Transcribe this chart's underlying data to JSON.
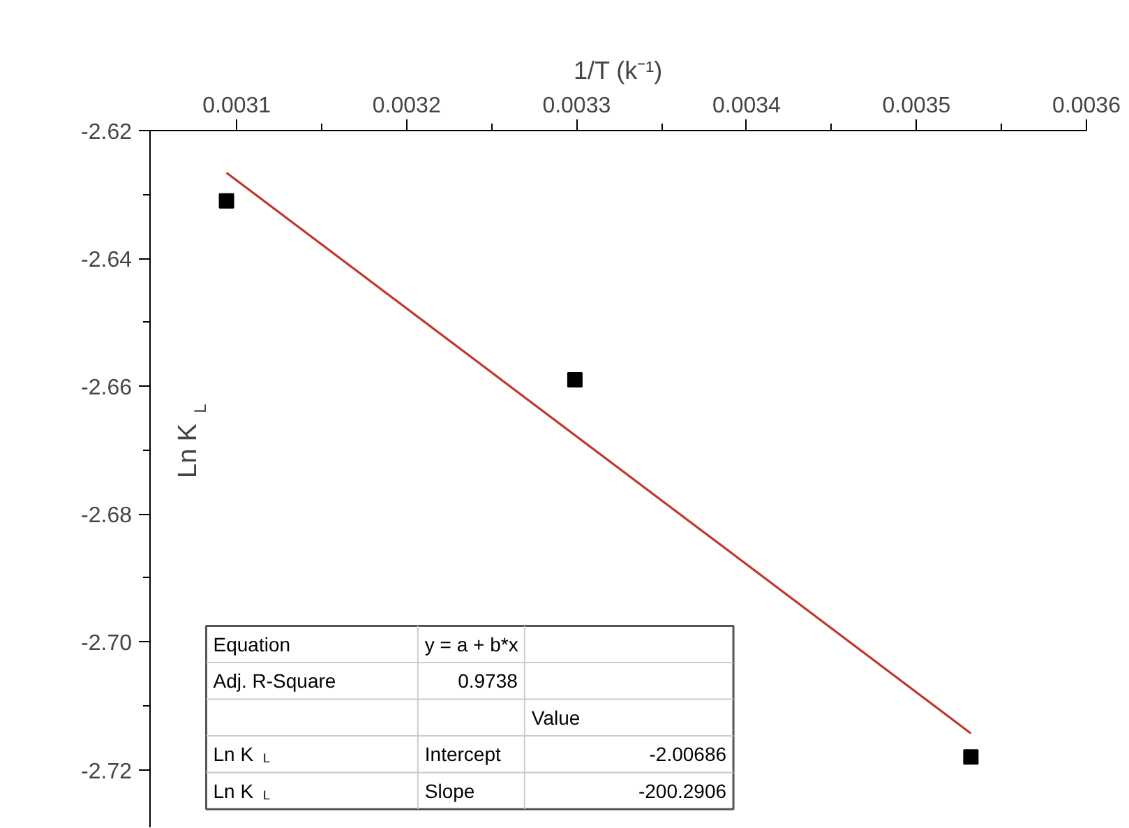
{
  "chart_data": {
    "type": "scatter",
    "xlabel": "1/T (k⁻¹)",
    "ylabel": "Ln K$_{L}$",
    "xlim": [
      0.003049,
      0.0036
    ],
    "ylim": [
      -2.729,
      -2.62
    ],
    "xticks": [
      0.0031,
      {
        "value": 0.00315,
        "label": null
      },
      0.0032,
      {
        "value": 0.00325,
        "label": null
      },
      0.0033,
      {
        "value": 0.00335,
        "label": null
      },
      0.0034,
      {
        "value": 0.00345,
        "label": null
      },
      0.0035,
      {
        "value": 0.00355,
        "label": null
      },
      0.0036
    ],
    "yticks": [
      {
        "value": -2.62,
        "label": "-2.62"
      },
      {
        "value": -2.63,
        "label": null
      },
      {
        "value": -2.64,
        "label": "-2.64"
      },
      {
        "value": -2.65,
        "label": null
      },
      {
        "value": -2.66,
        "label": "-2.66"
      },
      {
        "value": -2.67,
        "label": null
      },
      {
        "value": -2.68,
        "label": "-2.68"
      },
      {
        "value": -2.69,
        "label": null
      },
      {
        "value": -2.7,
        "label": "-2.70"
      },
      {
        "value": -2.71,
        "label": null
      },
      {
        "value": -2.72,
        "label": "-2.72"
      }
    ],
    "grid": false,
    "marker": "square",
    "series": [
      {
        "color": "#000000",
        "x": [
          0.003094,
          0.003299,
          0.003532
        ],
        "values": [
          -2.631,
          -2.659,
          -2.718
        ]
      },
      {
        "type": "line",
        "marker": "none",
        "color": "#c0392b",
        "x": [
          0.003094,
          0.003532
        ],
        "values": [
          -2.6266,
          -2.7143
        ]
      }
    ],
    "annotations": [
      "Equation",
      "y = a + b*x",
      "Adj. R-Square",
      "0.9738",
      "Value",
      "Ln K$_{L}$",
      "Intercept",
      "-2.00686",
      "Ln K$_{L}$",
      "Slope",
      "-200.2906"
    ]
  }
}
